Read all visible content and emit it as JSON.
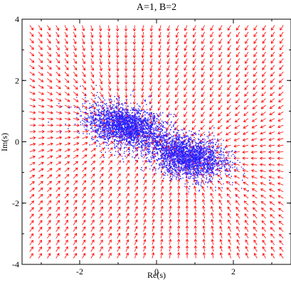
{
  "chart_data": {
    "type": "scatter",
    "title": "A=1, B=2",
    "xlabel": "Re(s)",
    "ylabel": "Im(s)",
    "xlim": [
      -3.5,
      3.5
    ],
    "ylim": [
      -4,
      4
    ],
    "grid": false,
    "x_ticks": [
      {
        "value": -2,
        "label": "-2"
      },
      {
        "value": 0,
        "label": "0"
      },
      {
        "value": 2,
        "label": "2"
      }
    ],
    "y_ticks": [
      {
        "value": -4,
        "label": "-4"
      },
      {
        "value": -2,
        "label": "-2"
      },
      {
        "value": 0,
        "label": "0"
      },
      {
        "value": 2,
        "label": "2"
      },
      {
        "value": 4,
        "label": "4"
      }
    ],
    "x_minor_step": 1,
    "y_minor_step": 1,
    "series": [
      {
        "type": "vector_field",
        "arrow_color": "#ff0000",
        "x_start": -3.3,
        "x_end": 3.3,
        "x_count": 30,
        "y_start": -3.8,
        "y_end": 3.8,
        "y_count": 36,
        "drift": "grad of log density of the two-cluster sample",
        "clusters": [
          {
            "center": [
              -0.8,
              0.5
            ],
            "weight": 0.5
          },
          {
            "center": [
              0.8,
              -0.5
            ],
            "weight": 0.5
          }
        ]
      },
      {
        "type": "scatter",
        "point_color": "#1f1fff",
        "point_accent": "#8a2be2",
        "approx_points": 5000,
        "clusters": [
          {
            "center": [
              -0.8,
              0.5
            ],
            "std": [
              0.5,
              0.35
            ],
            "correlation": -0.3
          },
          {
            "center": [
              0.8,
              -0.5
            ],
            "std": [
              0.5,
              0.35
            ],
            "correlation": -0.3
          }
        ]
      }
    ]
  }
}
